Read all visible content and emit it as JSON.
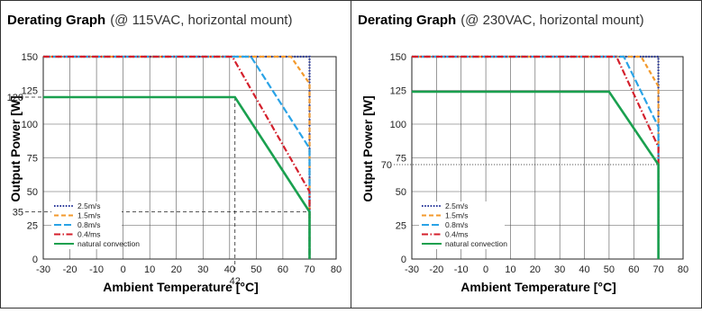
{
  "legend_labels": [
    "2.5m/s",
    "1.5m/s",
    "0.8m/s",
    "0.4/ms",
    "natural convection"
  ],
  "chart_data": [
    {
      "type": "line",
      "title_bold": "Derating Graph",
      "title_rest": "(@ 115VAC, horizontal mount)",
      "xlabel": "Ambient Temperature [°C]",
      "ylabel": "Output Power [W]",
      "xlim": [
        -30,
        80
      ],
      "ylim": [
        0,
        150
      ],
      "xticks": [
        -30,
        -20,
        -10,
        0,
        10,
        20,
        30,
        40,
        50,
        60,
        70,
        80
      ],
      "yticks": [
        0,
        25,
        50,
        75,
        100,
        125,
        150
      ],
      "grid": true,
      "legend_position": "bottom-left",
      "series": [
        {
          "name": "2.5m/s",
          "color": "#2b3a9b",
          "dash": "dotted",
          "x": [
            -30,
            70,
            70
          ],
          "y": [
            150,
            150,
            0
          ]
        },
        {
          "name": "1.5m/s",
          "color": "#f39a2d",
          "dash": "dashed",
          "x": [
            -30,
            63,
            70,
            70
          ],
          "y": [
            150,
            150,
            130,
            0
          ]
        },
        {
          "name": "0.8m/s",
          "color": "#2aa3e6",
          "dash": "longdash",
          "x": [
            -30,
            48,
            70,
            70
          ],
          "y": [
            150,
            150,
            82,
            0
          ]
        },
        {
          "name": "0.4/ms",
          "color": "#d4202c",
          "dash": "dashdot",
          "x": [
            -30,
            41,
            70,
            70
          ],
          "y": [
            150,
            150,
            50,
            0
          ]
        },
        {
          "name": "natural convection",
          "color": "#1aa04f",
          "dash": "solid",
          "x": [
            -30,
            42,
            70,
            70
          ],
          "y": [
            120,
            120,
            35,
            0
          ]
        }
      ],
      "annotations": [
        {
          "label": "120",
          "type": "hline",
          "value": 120
        },
        {
          "label": "35",
          "type": "hline",
          "value": 35
        },
        {
          "label": "42",
          "type": "vline",
          "value": 42
        }
      ]
    },
    {
      "type": "line",
      "title_bold": "Derating Graph",
      "title_rest": "(@ 230VAC, horizontal mount)",
      "xlabel": "Ambient Temperature [°C]",
      "ylabel": "Output Power [W]",
      "xlim": [
        -30,
        80
      ],
      "ylim": [
        0,
        150
      ],
      "xticks": [
        -30,
        -20,
        -10,
        0,
        10,
        20,
        30,
        40,
        50,
        60,
        70,
        80
      ],
      "yticks": [
        0,
        25,
        50,
        75,
        100,
        125,
        150
      ],
      "grid": true,
      "legend_position": "bottom-left",
      "series": [
        {
          "name": "2.5m/s",
          "color": "#2b3a9b",
          "dash": "dotted",
          "x": [
            -30,
            70,
            70
          ],
          "y": [
            150,
            150,
            0
          ]
        },
        {
          "name": "1.5m/s",
          "color": "#f39a2d",
          "dash": "dashed",
          "x": [
            -30,
            63,
            70,
            70
          ],
          "y": [
            150,
            150,
            128,
            0
          ]
        },
        {
          "name": "0.8m/s",
          "color": "#2aa3e6",
          "dash": "longdash",
          "x": [
            -30,
            56,
            70,
            70
          ],
          "y": [
            150,
            150,
            98,
            0
          ]
        },
        {
          "name": "0.4/ms",
          "color": "#d4202c",
          "dash": "dashdot",
          "x": [
            -30,
            53,
            70,
            70
          ],
          "y": [
            150,
            150,
            83,
            0
          ]
        },
        {
          "name": "natural convection",
          "color": "#1aa04f",
          "dash": "solid",
          "x": [
            -30,
            50,
            70,
            70
          ],
          "y": [
            124,
            124,
            70,
            0
          ]
        }
      ],
      "annotations": [
        {
          "label": "70",
          "type": "hline",
          "value": 70
        }
      ]
    }
  ]
}
